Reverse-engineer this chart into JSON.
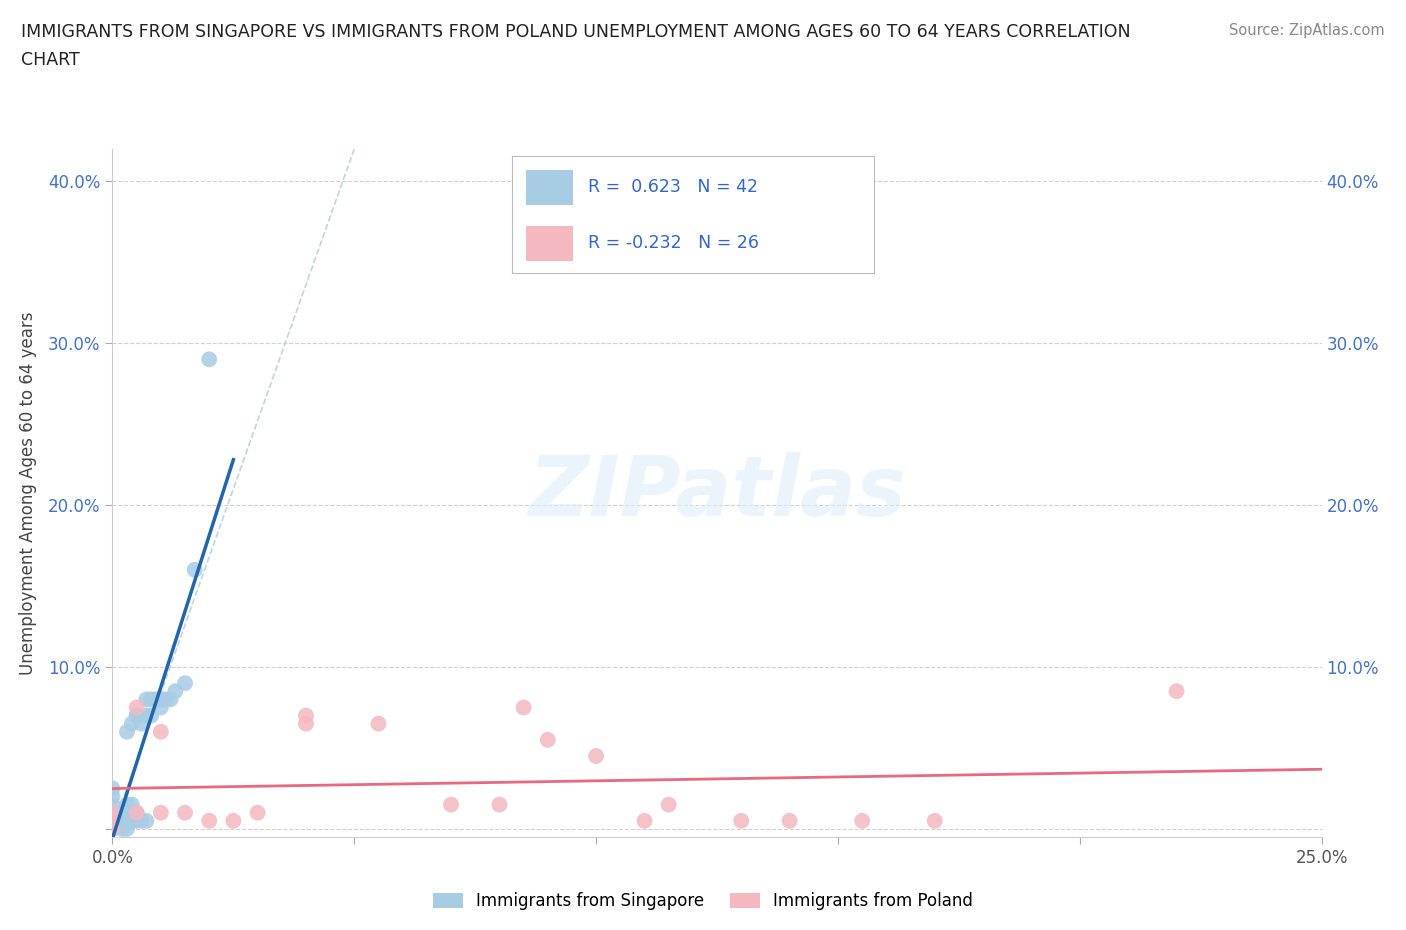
{
  "title_line1": "IMMIGRANTS FROM SINGAPORE VS IMMIGRANTS FROM POLAND UNEMPLOYMENT AMONG AGES 60 TO 64 YEARS CORRELATION",
  "title_line2": "CHART",
  "source": "Source: ZipAtlas.com",
  "ylabel": "Unemployment Among Ages 60 to 64 years",
  "xlim": [
    0.0,
    0.25
  ],
  "ylim": [
    -0.005,
    0.42
  ],
  "singapore_R": 0.623,
  "singapore_N": 42,
  "poland_R": -0.232,
  "poland_N": 26,
  "singapore_color": "#a8cce4",
  "poland_color": "#f4b8c1",
  "singapore_line_color": "#2166ac",
  "poland_line_color": "#e8697d",
  "diag_color": "#b0c8e0",
  "background_color": "#ffffff",
  "singapore_x": [
    0.0,
    0.0,
    0.0,
    0.0,
    0.0,
    0.0,
    0.0,
    0.0,
    0.0,
    0.0,
    0.002,
    0.002,
    0.002,
    0.003,
    0.003,
    0.003,
    0.003,
    0.003,
    0.004,
    0.004,
    0.004,
    0.004,
    0.005,
    0.005,
    0.005,
    0.005,
    0.006,
    0.006,
    0.007,
    0.007,
    0.007,
    0.008,
    0.008,
    0.009,
    0.01,
    0.01,
    0.011,
    0.012,
    0.013,
    0.015,
    0.017,
    0.02
  ],
  "singapore_y": [
    0.0,
    0.0,
    0.0,
    0.005,
    0.005,
    0.01,
    0.01,
    0.015,
    0.02,
    0.025,
    0.0,
    0.005,
    0.01,
    0.0,
    0.005,
    0.01,
    0.015,
    0.06,
    0.005,
    0.01,
    0.015,
    0.065,
    0.005,
    0.01,
    0.07,
    0.07,
    0.005,
    0.065,
    0.005,
    0.07,
    0.08,
    0.07,
    0.08,
    0.08,
    0.075,
    0.08,
    0.08,
    0.08,
    0.085,
    0.09,
    0.16,
    0.29
  ],
  "poland_x": [
    0.0,
    0.0,
    0.0,
    0.005,
    0.005,
    0.01,
    0.01,
    0.015,
    0.02,
    0.025,
    0.03,
    0.04,
    0.04,
    0.055,
    0.07,
    0.08,
    0.085,
    0.09,
    0.1,
    0.11,
    0.115,
    0.13,
    0.14,
    0.155,
    0.17,
    0.22
  ],
  "poland_y": [
    0.0,
    0.005,
    0.01,
    0.01,
    0.075,
    0.01,
    0.06,
    0.01,
    0.005,
    0.005,
    0.01,
    0.065,
    0.07,
    0.065,
    0.015,
    0.015,
    0.075,
    0.055,
    0.045,
    0.005,
    0.015,
    0.005,
    0.005,
    0.005,
    0.005,
    0.085
  ]
}
